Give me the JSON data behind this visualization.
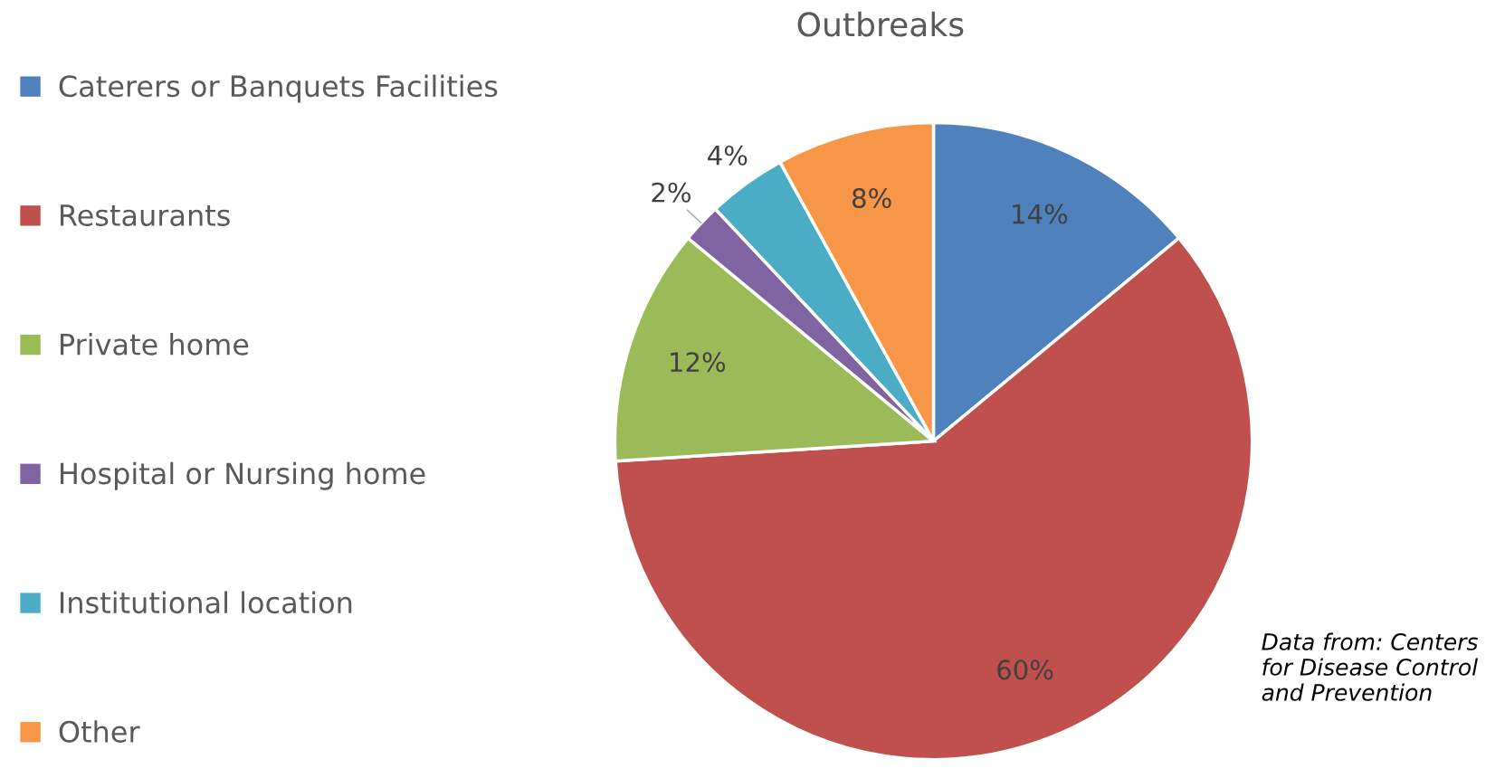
{
  "chart_data": {
    "type": "pie",
    "title": "Outbreaks",
    "categories": [
      "Caterers or Banquets Facilities",
      "Restaurants",
      "Private home",
      "Hospital or Nursing home",
      "Institutional location",
      "Other"
    ],
    "values": [
      14,
      60,
      12,
      2,
      4,
      8
    ],
    "colors": [
      "#4f81bd",
      "#c0504d",
      "#9bbb59",
      "#8064a2",
      "#4bacc6",
      "#f79646"
    ],
    "value_labels": [
      "14%",
      "60%",
      "12%",
      "2%",
      "4%",
      "8%"
    ],
    "legend": "left",
    "annotations": [
      "Data from: Centers for Disease Control and Prevention"
    ]
  }
}
